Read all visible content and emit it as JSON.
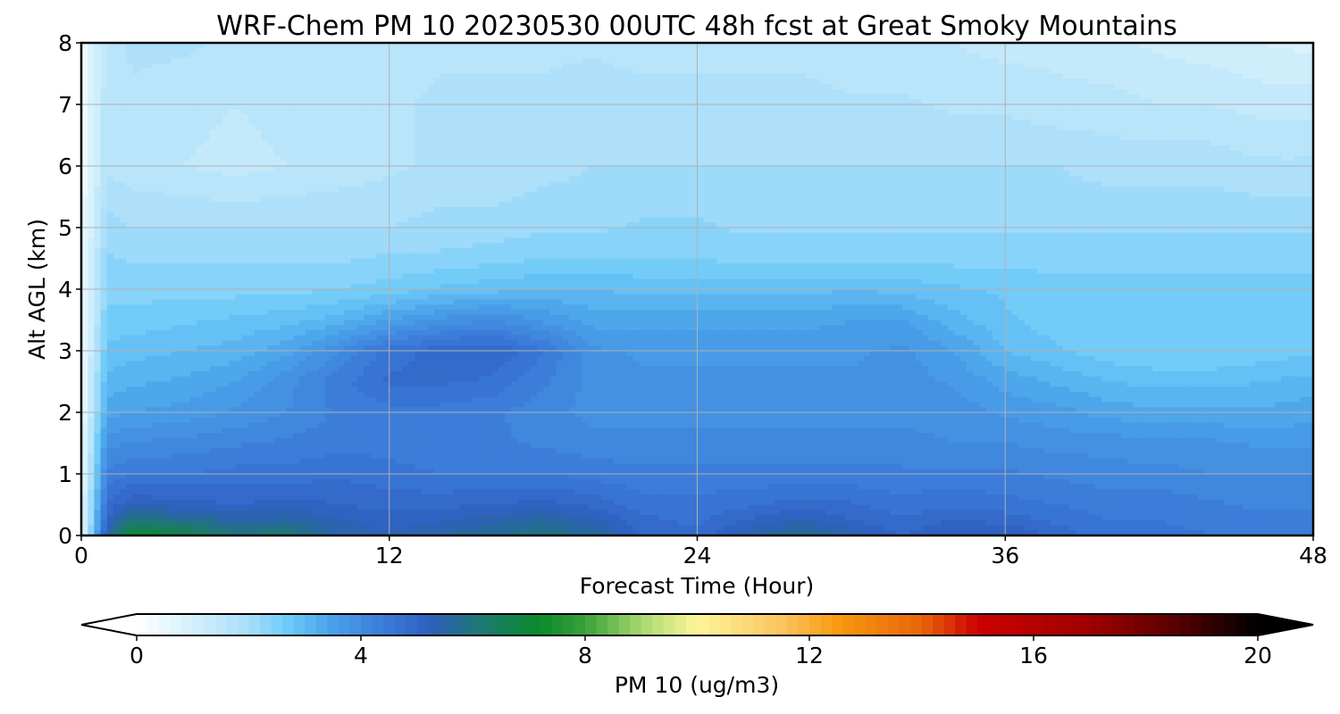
{
  "chart_data": {
    "type": "heatmap",
    "title": "WRF-Chem PM 10  20230530 00UTC 48h fcst at Great Smoky Mountains",
    "xlabel": "Forecast Time (Hour)",
    "ylabel": "Alt AGL (km)",
    "xlim": [
      0,
      48
    ],
    "ylim": [
      0,
      8
    ],
    "x_ticks": [
      0,
      12,
      24,
      36,
      48
    ],
    "y_ticks": [
      0,
      1,
      2,
      3,
      4,
      5,
      6,
      7,
      8
    ],
    "grid": true,
    "colorbar": {
      "label": "PM 10  (ug/m3)",
      "range": [
        0,
        20
      ],
      "ticks": [
        0,
        4,
        8,
        12,
        16,
        20
      ],
      "extend": "both",
      "stops": [
        {
          "v": 0,
          "c": "#ffffff"
        },
        {
          "v": 1,
          "c": "#d4f0fc"
        },
        {
          "v": 2,
          "c": "#a9defa"
        },
        {
          "v": 2.7,
          "c": "#6ccaf8"
        },
        {
          "v": 3.5,
          "c": "#4aa0e8"
        },
        {
          "v": 4.5,
          "c": "#3a78d8"
        },
        {
          "v": 5.2,
          "c": "#2f5fbf"
        },
        {
          "v": 6.2,
          "c": "#1d7a6e"
        },
        {
          "v": 7.2,
          "c": "#0a8a2a"
        },
        {
          "v": 8,
          "c": "#3aa13a"
        },
        {
          "v": 9,
          "c": "#a8d870"
        },
        {
          "v": 10,
          "c": "#fff59a"
        },
        {
          "v": 11.5,
          "c": "#fbc460"
        },
        {
          "v": 12.5,
          "c": "#f79a10"
        },
        {
          "v": 14,
          "c": "#e8650a"
        },
        {
          "v": 15,
          "c": "#cc0000"
        },
        {
          "v": 17,
          "c": "#a00000"
        },
        {
          "v": 18.5,
          "c": "#5a0000"
        },
        {
          "v": 20,
          "c": "#000000"
        }
      ],
      "under_color": "#ffffff",
      "over_color": "#000000"
    },
    "x": [
      0,
      1,
      2,
      4,
      6,
      8,
      10,
      12,
      14,
      16,
      18,
      20,
      22,
      24,
      26,
      28,
      30,
      32,
      34,
      36,
      38,
      40,
      42,
      44,
      46,
      48
    ],
    "y": [
      0,
      0.25,
      0.5,
      1,
      1.5,
      2,
      2.5,
      3,
      3.5,
      4,
      4.5,
      5,
      6,
      7,
      8
    ],
    "z": [
      [
        0.5,
        5.5,
        7.2,
        6.8,
        6.0,
        6.2,
        5.4,
        5.3,
        5.5,
        5.7,
        6.0,
        5.6,
        4.9,
        4.8,
        5.4,
        5.8,
        5.4,
        5.0,
        5.3,
        5.3,
        4.9,
        4.6,
        4.6,
        4.5,
        4.4,
        4.4
      ],
      [
        0.5,
        5.0,
        6.0,
        5.8,
        5.5,
        5.6,
        5.3,
        5.1,
        5.2,
        5.4,
        5.6,
        5.3,
        4.8,
        4.7,
        5.0,
        5.3,
        5.0,
        4.8,
        5.0,
        4.9,
        4.7,
        4.5,
        4.5,
        4.4,
        4.3,
        4.3
      ],
      [
        0.5,
        4.8,
        5.2,
        5.1,
        5.0,
        5.1,
        5.0,
        4.9,
        4.9,
        5.0,
        5.1,
        4.9,
        4.6,
        4.6,
        4.7,
        4.9,
        4.8,
        4.6,
        4.7,
        4.6,
        4.5,
        4.4,
        4.4,
        4.3,
        4.2,
        4.2
      ],
      [
        0.4,
        4.3,
        4.5,
        4.5,
        4.6,
        4.6,
        4.7,
        4.6,
        4.5,
        4.5,
        4.5,
        4.4,
        4.3,
        4.3,
        4.3,
        4.3,
        4.3,
        4.3,
        4.3,
        4.3,
        4.2,
        4.1,
        4.1,
        4.0,
        4.0,
        4.0
      ],
      [
        0.4,
        3.9,
        4.0,
        4.1,
        4.2,
        4.3,
        4.4,
        4.4,
        4.3,
        4.3,
        4.2,
        4.1,
        4.1,
        4.1,
        4.1,
        4.1,
        4.1,
        4.1,
        4.0,
        4.0,
        3.9,
        3.9,
        3.8,
        3.8,
        3.7,
        3.7
      ],
      [
        0.3,
        3.4,
        3.5,
        3.6,
        3.8,
        4.0,
        4.3,
        4.4,
        4.4,
        4.3,
        4.1,
        3.9,
        3.9,
        3.9,
        3.9,
        3.9,
        3.9,
        3.9,
        3.9,
        3.7,
        3.6,
        3.4,
        3.3,
        3.3,
        3.3,
        3.4
      ],
      [
        0.3,
        3.1,
        3.2,
        3.3,
        3.5,
        3.9,
        4.4,
        4.8,
        4.8,
        4.7,
        4.3,
        3.9,
        3.8,
        3.8,
        3.8,
        3.8,
        3.8,
        3.9,
        3.7,
        3.4,
        3.2,
        3.0,
        2.9,
        2.9,
        3.0,
        3.1
      ],
      [
        0.3,
        2.8,
        2.9,
        3.0,
        3.1,
        3.4,
        4.0,
        4.6,
        4.9,
        5.0,
        4.5,
        3.8,
        3.7,
        3.7,
        3.7,
        3.7,
        3.7,
        3.8,
        3.5,
        3.0,
        2.8,
        2.6,
        2.5,
        2.5,
        2.6,
        2.7
      ],
      [
        0.3,
        2.6,
        2.6,
        2.7,
        2.8,
        2.9,
        3.1,
        3.5,
        3.8,
        4.0,
        3.7,
        3.4,
        3.4,
        3.4,
        3.4,
        3.4,
        3.5,
        3.5,
        3.1,
        2.8,
        2.6,
        2.5,
        2.6,
        2.6,
        2.6,
        2.6
      ],
      [
        0.3,
        2.4,
        2.4,
        2.4,
        2.4,
        2.4,
        2.5,
        2.6,
        2.8,
        2.9,
        3.0,
        3.0,
        2.9,
        2.9,
        2.9,
        2.9,
        3.0,
        2.9,
        2.8,
        2.7,
        2.6,
        2.6,
        2.6,
        2.6,
        2.6,
        2.6
      ],
      [
        0.3,
        2.3,
        2.2,
        2.2,
        2.2,
        2.2,
        2.2,
        2.3,
        2.3,
        2.4,
        2.5,
        2.5,
        2.5,
        2.5,
        2.4,
        2.4,
        2.4,
        2.4,
        2.4,
        2.4,
        2.4,
        2.4,
        2.4,
        2.4,
        2.4,
        2.4
      ],
      [
        0.3,
        2.1,
        2.0,
        2.0,
        2.0,
        2.0,
        2.0,
        2.0,
        2.1,
        2.1,
        2.2,
        2.2,
        2.3,
        2.3,
        2.2,
        2.2,
        2.2,
        2.2,
        2.2,
        2.2,
        2.2,
        2.2,
        2.2,
        2.2,
        2.2,
        2.2
      ],
      [
        0.3,
        1.7,
        1.6,
        1.5,
        1.4,
        1.5,
        1.6,
        1.7,
        1.8,
        1.8,
        1.9,
        2.0,
        2.0,
        2.0,
        2.0,
        2.0,
        2.0,
        2.0,
        2.0,
        2.0,
        2.0,
        1.9,
        1.9,
        1.9,
        1.8,
        1.8
      ],
      [
        0.3,
        1.7,
        1.7,
        1.6,
        1.5,
        1.6,
        1.6,
        1.7,
        1.8,
        1.8,
        1.8,
        1.9,
        1.9,
        1.9,
        1.9,
        1.9,
        1.8,
        1.8,
        1.7,
        1.7,
        1.6,
        1.6,
        1.5,
        1.5,
        1.4,
        1.4
      ],
      [
        0.3,
        1.6,
        1.8,
        1.8,
        1.7,
        1.6,
        1.6,
        1.6,
        1.7,
        1.7,
        1.7,
        1.7,
        1.6,
        1.6,
        1.6,
        1.6,
        1.5,
        1.5,
        1.5,
        1.4,
        1.4,
        1.3,
        1.2,
        1.1,
        1.0,
        0.9
      ]
    ]
  }
}
